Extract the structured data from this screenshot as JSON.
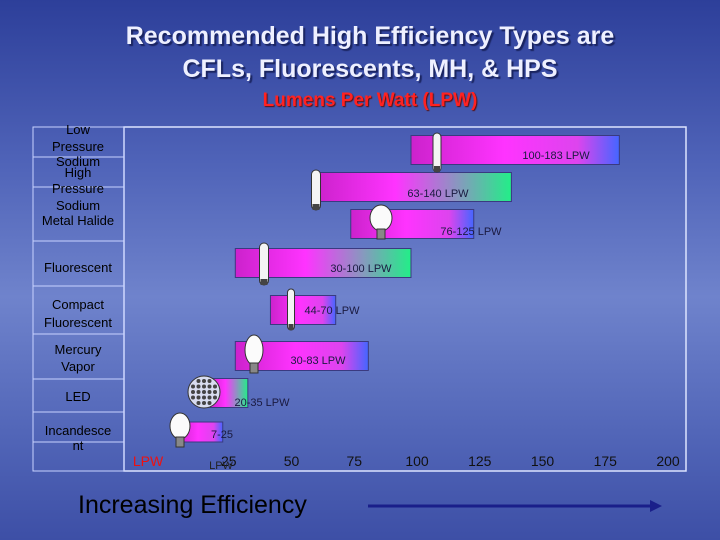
{
  "title_line1": "Recommended High Efficiency Types are",
  "title_line2": "CFLs, Fluorescents, MH, & HPS",
  "subtitle": "Lumens Per Watt (LPW)",
  "footer_label": "Increasing Efficiency",
  "chart_data": {
    "type": "bar",
    "orientation": "horizontal-range",
    "xlabel": "LPW",
    "xlim": [
      0,
      200
    ],
    "xticks": [
      "25",
      "50",
      "75",
      "100",
      "125",
      "150",
      "175",
      "200"
    ],
    "categories": [
      "Low Pressure Sodium",
      "High Pressure Sodium",
      "Metal Halide",
      "Fluorescent",
      "Compact Fluorescent",
      "Mercury Vapor",
      "LED",
      "Incandesce nt"
    ],
    "ranges": [
      [
        100,
        183
      ],
      [
        63,
        140
      ],
      [
        76,
        125
      ],
      [
        30,
        100
      ],
      [
        44,
        70
      ],
      [
        30,
        83
      ],
      [
        20,
        35
      ],
      [
        7,
        25
      ]
    ],
    "range_labels": [
      "100-183 LPW",
      "63-140 LPW",
      "76-125 LPW",
      "30-100 LPW",
      "44-70 LPW",
      "30-83 LPW",
      "20-35 LPW",
      "7-25"
    ],
    "extra_label": "LPW",
    "lamp_icons": [
      "lps-lamp-icon",
      "hps-lamp-icon",
      "metal-halide-lamp-icon",
      "fluorescent-tube-icon",
      "cfl-lamp-icon",
      "mercury-vapor-lamp-icon",
      "led-cluster-icon",
      "incandescent-bulb-icon"
    ],
    "colors": {
      "bar_start": "#ff33ff",
      "bar_mid": "#cc22cc",
      "bar_end_green": "#22ee88",
      "bar_end_blue": "#4466ff",
      "plot_border": "#dde4ff",
      "arrow": "#1a1f8a"
    }
  }
}
